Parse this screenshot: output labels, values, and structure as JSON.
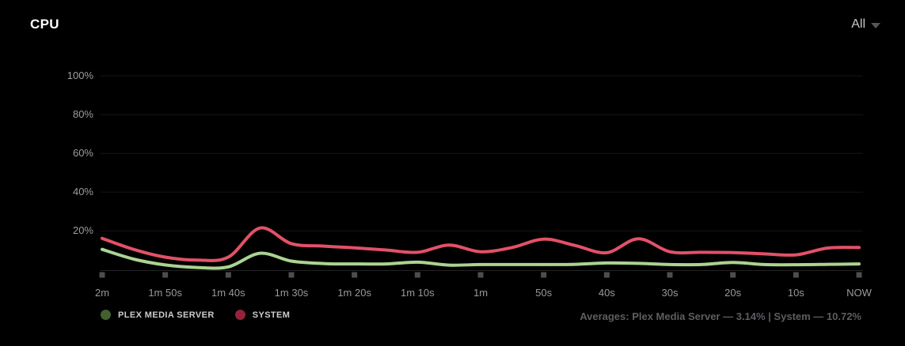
{
  "header": {
    "title": "CPU",
    "range_dropdown": {
      "value": "All"
    }
  },
  "colors": {
    "background": "#000000",
    "grid_line": "#161616",
    "axis_line": "#242424",
    "tick_square": "#4d4d4d",
    "plex_line": "#abd391",
    "plex_legend_dot": "#42612e",
    "system_line": "#e25168",
    "system_legend_dot": "#93233a",
    "title_text": "#ffffff",
    "axis_label_text": "#96999c",
    "legend_text": "#cbcdcf",
    "averages_text": "#5b5e62",
    "dropdown_text": "#c6c8ca"
  },
  "chart_data": {
    "type": "line",
    "title": "CPU",
    "xlabel": "",
    "ylabel": "",
    "grid": true,
    "legend_position": "bottom-left",
    "ylim": [
      0,
      100
    ],
    "x_seconds_range": [
      0,
      120
    ],
    "y_ticks": [
      {
        "v": 100,
        "label": "100%"
      },
      {
        "v": 80,
        "label": "80%"
      },
      {
        "v": 60,
        "label": "60%"
      },
      {
        "v": 40,
        "label": "40%"
      },
      {
        "v": 20,
        "label": "20%"
      }
    ],
    "x_ticks": [
      {
        "t": 0,
        "label": "2m"
      },
      {
        "t": 10,
        "label": "1m 50s"
      },
      {
        "t": 20,
        "label": "1m 40s"
      },
      {
        "t": 30,
        "label": "1m 30s"
      },
      {
        "t": 40,
        "label": "1m 20s"
      },
      {
        "t": 50,
        "label": "1m 10s"
      },
      {
        "t": 60,
        "label": "1m"
      },
      {
        "t": 70,
        "label": "50s"
      },
      {
        "t": 80,
        "label": "40s"
      },
      {
        "t": 90,
        "label": "30s"
      },
      {
        "t": 100,
        "label": "20s"
      },
      {
        "t": 110,
        "label": "10s"
      },
      {
        "t": 120,
        "label": "NOW"
      }
    ],
    "series": [
      {
        "name": "System",
        "legend_label": "SYSTEM",
        "color": "#e25168",
        "legend_dot_color": "#93233a",
        "average_pct": 10.72,
        "t": [
          0,
          5,
          10,
          15,
          20,
          25,
          30,
          35,
          40,
          45,
          50,
          55,
          60,
          65,
          70,
          75,
          80,
          85,
          90,
          95,
          100,
          105,
          110,
          115,
          120
        ],
        "values": [
          16.2,
          10.5,
          6.5,
          5.0,
          6.5,
          21.5,
          13.5,
          12.2,
          11.3,
          10.2,
          9.0,
          12.7,
          9.3,
          11.5,
          15.8,
          12.5,
          8.8,
          16.0,
          9.3,
          9.0,
          8.9,
          8.2,
          7.7,
          11.2,
          11.5
        ]
      },
      {
        "name": "Plex Media Server",
        "legend_label": "PLEX MEDIA SERVER",
        "color": "#abd391",
        "legend_dot_color": "#42612e",
        "average_pct": 3.14,
        "t": [
          0,
          5,
          10,
          15,
          20,
          25,
          30,
          35,
          40,
          45,
          50,
          55,
          60,
          65,
          70,
          75,
          80,
          85,
          90,
          95,
          100,
          105,
          110,
          115,
          120
        ],
        "values": [
          10.5,
          5.5,
          2.5,
          1.2,
          1.5,
          8.5,
          4.5,
          3.2,
          3.0,
          3.0,
          3.9,
          2.4,
          2.7,
          2.7,
          2.7,
          2.8,
          3.5,
          3.3,
          2.7,
          2.7,
          3.8,
          2.7,
          2.6,
          2.8,
          3.0
        ]
      }
    ],
    "legend_order": [
      "Plex Media Server",
      "System"
    ]
  },
  "footer": {
    "averages": "Averages: Plex Media Server — 3.14% | System — 10.72%"
  }
}
